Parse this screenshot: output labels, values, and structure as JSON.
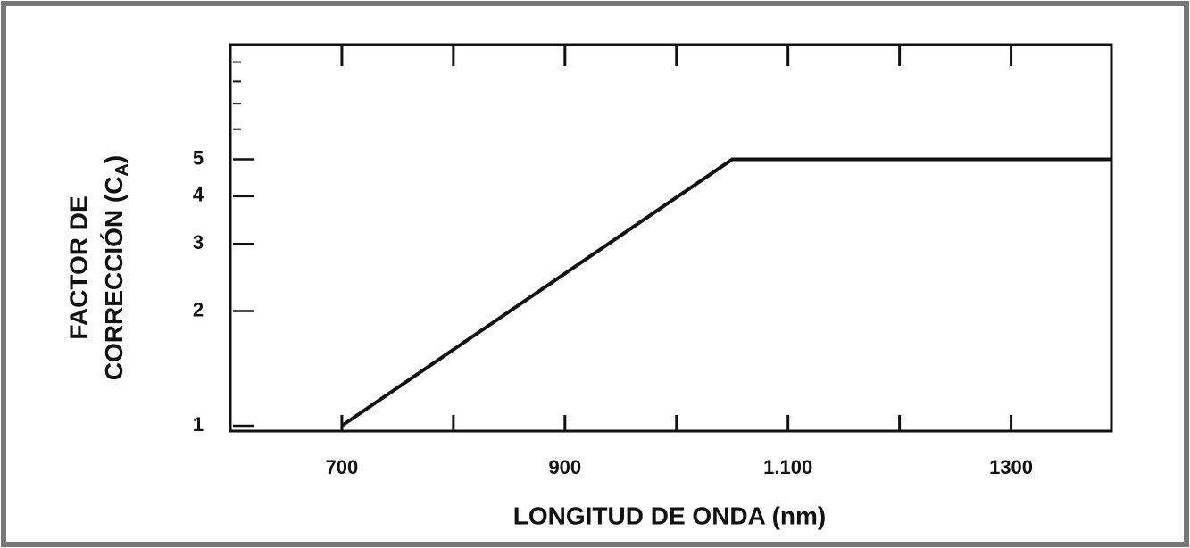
{
  "chart_data": {
    "type": "line",
    "xlabel": "LONGITUD DE ONDA (nm)",
    "ylabel": {
      "line1": "FACTOR DE",
      "line2": "CORRECCIÓN (C",
      "sub": "A",
      "close": ")"
    },
    "x": [
      700,
      1050,
      1390
    ],
    "series": [
      {
        "color": "#111111",
        "values": [
          1,
          5,
          5
        ]
      }
    ],
    "xlim": [
      600,
      1390
    ],
    "xticks": [
      700,
      900,
      {
        "value": 1100,
        "label": "1.100"
      },
      1300
    ],
    "minor_xticks": [
      800,
      1000,
      1200
    ],
    "ylim": [
      1,
      10
    ],
    "yticks": [
      1,
      2,
      3,
      4,
      5
    ],
    "minor_yticks": [
      6,
      7,
      8,
      9,
      10
    ],
    "ylog": true
  }
}
